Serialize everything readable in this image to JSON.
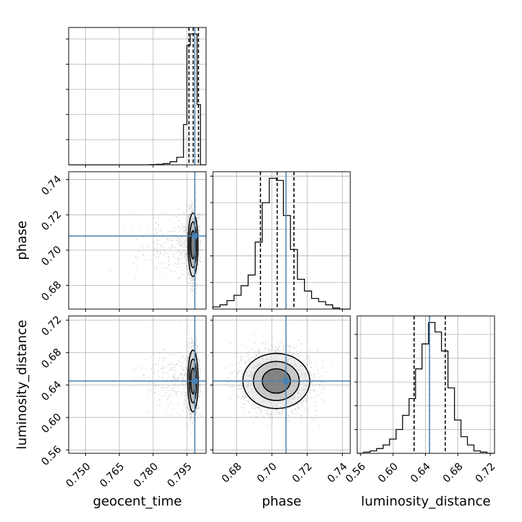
{
  "chart_data": {
    "type": "corner",
    "parameters": [
      "geocent_time",
      "phase",
      "luminosity_distance"
    ],
    "truths": {
      "geocent_time": 0.7985,
      "phase": 0.708,
      "luminosity_distance": 0.645
    },
    "colors": {
      "truth": "#4682b4",
      "hist": "#000000",
      "grid": "#b0b0b0",
      "points": "#9a9a9a"
    },
    "ranges": {
      "geocent_time": [
        0.7425,
        0.8035
      ],
      "phase": [
        0.6665,
        0.7445
      ],
      "luminosity_distance": [
        0.5558,
        0.7252
      ]
    },
    "ticks": {
      "geocent_time": {
        "values": [
          0.75,
          0.765,
          0.78,
          0.795
        ],
        "labels": [
          "0.750",
          "0.765",
          "0.780",
          "0.795"
        ]
      },
      "phase": {
        "values": [
          0.68,
          0.7,
          0.72,
          0.74
        ],
        "labels": [
          "0.68",
          "0.70",
          "0.72",
          "0.74"
        ]
      },
      "luminosity_distance": {
        "values": [
          0.56,
          0.6,
          0.64,
          0.68,
          0.72
        ],
        "labels": [
          "0.56",
          "0.60",
          "0.64",
          "0.68",
          "0.72"
        ]
      }
    },
    "diagonal": {
      "geocent_time": {
        "quantiles": [
          0.7959,
          0.7978,
          0.8001
        ],
        "bins": [
          0.7425,
          0.7455,
          0.7485,
          0.7515,
          0.7545,
          0.7575,
          0.7605,
          0.7635,
          0.7665,
          0.7695,
          0.7725,
          0.7755,
          0.7785,
          0.7815,
          0.7845,
          0.7875,
          0.7905,
          0.7935,
          0.795,
          0.7965,
          0.798,
          0.7995,
          0.801,
          0.8035
        ],
        "density": [
          0,
          0,
          0,
          0,
          0,
          0,
          0,
          0,
          0,
          0,
          0,
          0,
          0.2,
          0.4,
          1.0,
          2.5,
          6.0,
          32.0,
          95.0,
          104.0,
          104.0,
          48.0,
          0
        ]
      },
      "phase": {
        "quantiles": [
          0.6935,
          0.703,
          0.7125
        ],
        "bins": [
          0.6665,
          0.6705,
          0.6745,
          0.6785,
          0.6825,
          0.6865,
          0.6905,
          0.6945,
          0.6985,
          0.7025,
          0.7065,
          0.7105,
          0.7145,
          0.7185,
          0.7225,
          0.7265,
          0.7305,
          0.7345,
          0.7385,
          0.7425,
          0.7445
        ],
        "density": [
          2,
          4,
          8,
          13,
          22,
          32,
          63,
          100,
          123,
          121,
          88,
          56,
          28,
          17,
          10,
          7,
          4,
          1,
          0,
          0
        ]
      },
      "luminosity_distance": {
        "quantiles": [
          0.626,
          0.645,
          0.6645
        ],
        "bins": [
          0.5558,
          0.5638,
          0.5718,
          0.5798,
          0.5878,
          0.5958,
          0.6038,
          0.6118,
          0.6198,
          0.6278,
          0.6358,
          0.6438,
          0.6518,
          0.6598,
          0.6678,
          0.6758,
          0.6838,
          0.6918,
          0.6998,
          0.7078,
          0.7158,
          0.7252
        ],
        "density": [
          0,
          1,
          2,
          4,
          7,
          12,
          20,
          32,
          46,
          71,
          92,
          110,
          102,
          86,
          55,
          28,
          14,
          7,
          2,
          1,
          0
        ]
      }
    },
    "pairs": [
      {
        "x": "geocent_time",
        "y": "phase",
        "samples": {
          "center": [
            0.7977,
            0.703
          ],
          "sd": [
            0.0012,
            0.009
          ],
          "n": 2200,
          "tail_frac": 0.12,
          "tail_scale_x": 9
        },
        "contours": [
          {
            "level": 0.5,
            "radius": [
              0.001,
              0.008
            ]
          },
          {
            "level": 0.86,
            "radius": [
              0.0016,
              0.013
            ]
          },
          {
            "level": 0.95,
            "radius": [
              0.0022,
              0.018
            ]
          }
        ]
      },
      {
        "x": "geocent_time",
        "y": "luminosity_distance",
        "samples": {
          "center": [
            0.7977,
            0.645
          ],
          "sd": [
            0.0012,
            0.019
          ],
          "n": 2200,
          "tail_frac": 0.12,
          "tail_scale_x": 9
        },
        "contours": [
          {
            "level": 0.5,
            "radius": [
              0.001,
              0.016
            ]
          },
          {
            "level": 0.86,
            "radius": [
              0.0016,
              0.027
            ]
          },
          {
            "level": 0.95,
            "radius": [
              0.0023,
              0.038
            ]
          }
        ]
      },
      {
        "x": "phase",
        "y": "luminosity_distance",
        "samples": {
          "center": [
            0.7025,
            0.645
          ],
          "sd": [
            0.0095,
            0.0185
          ],
          "n": 2600,
          "tail_frac": 0.0,
          "tail_scale_x": 1
        },
        "contours": [
          {
            "level": 0.5,
            "radius": [
              0.008,
              0.015
            ]
          },
          {
            "level": 0.86,
            "radius": [
              0.013,
              0.024
            ]
          },
          {
            "level": 0.95,
            "radius": [
              0.019,
              0.034
            ]
          }
        ]
      }
    ]
  }
}
